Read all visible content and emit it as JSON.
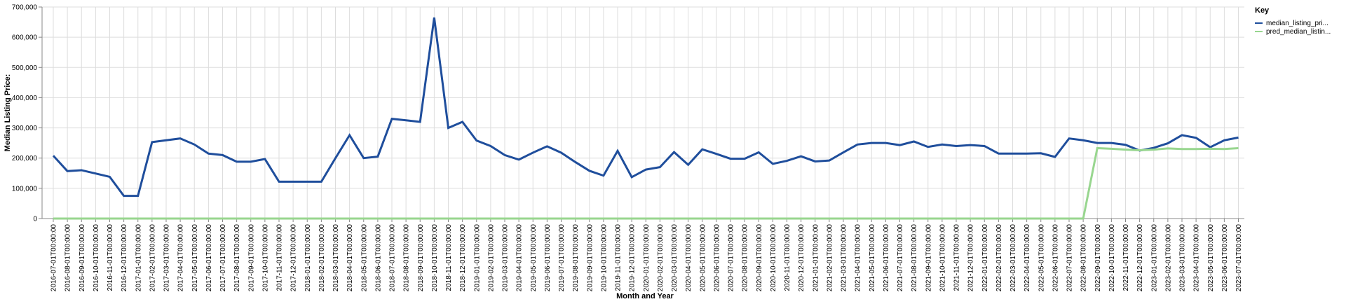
{
  "chart_data": {
    "type": "line",
    "xlabel": "Month and Year",
    "ylabel": "Median Listing Price:",
    "ylim": [
      0,
      700000
    ],
    "y_ticks": [
      0,
      100000,
      200000,
      300000,
      400000,
      500000,
      600000,
      700000
    ],
    "y_tick_labels": [
      "0",
      "100,000",
      "200,000",
      "300,000",
      "400,000",
      "500,000",
      "600,000",
      "700,000"
    ],
    "grid": true,
    "legend": {
      "title": "Key",
      "placement": "right"
    },
    "x": [
      "2016-07-01T00:00:00",
      "2016-08-01T00:00:00",
      "2016-09-01T00:00:00",
      "2016-10-01T00:00:00",
      "2016-11-01T00:00:00",
      "2016-12-01T00:00:00",
      "2017-01-01T00:00:00",
      "2017-02-01T00:00:00",
      "2017-03-01T00:00:00",
      "2017-04-01T00:00:00",
      "2017-05-01T00:00:00",
      "2017-06-01T00:00:00",
      "2017-07-01T00:00:00",
      "2017-08-01T00:00:00",
      "2017-09-01T00:00:00",
      "2017-10-01T00:00:00",
      "2017-11-01T00:00:00",
      "2017-12-01T00:00:00",
      "2018-01-01T00:00:00",
      "2018-02-01T00:00:00",
      "2018-03-01T00:00:00",
      "2018-04-01T00:00:00",
      "2018-05-01T00:00:00",
      "2018-06-01T00:00:00",
      "2018-07-01T00:00:00",
      "2018-08-01T00:00:00",
      "2018-09-01T00:00:00",
      "2018-10-01T00:00:00",
      "2018-11-01T00:00:00",
      "2018-12-01T00:00:00",
      "2019-01-01T00:00:00",
      "2019-02-01T00:00:00",
      "2019-03-01T00:00:00",
      "2019-04-01T00:00:00",
      "2019-05-01T00:00:00",
      "2019-06-01T00:00:00",
      "2019-07-01T00:00:00",
      "2019-08-01T00:00:00",
      "2019-09-01T00:00:00",
      "2019-10-01T00:00:00",
      "2019-11-01T00:00:00",
      "2019-12-01T00:00:00",
      "2020-01-01T00:00:00",
      "2020-02-01T00:00:00",
      "2020-03-01T00:00:00",
      "2020-04-01T00:00:00",
      "2020-05-01T00:00:00",
      "2020-06-01T00:00:00",
      "2020-07-01T00:00:00",
      "2020-08-01T00:00:00",
      "2020-09-01T00:00:00",
      "2020-10-01T00:00:00",
      "2020-11-01T00:00:00",
      "2020-12-01T00:00:00",
      "2021-01-01T00:00:00",
      "2021-02-01T00:00:00",
      "2021-03-01T00:00:00",
      "2021-04-01T00:00:00",
      "2021-05-01T00:00:00",
      "2021-06-01T00:00:00",
      "2021-07-01T00:00:00",
      "2021-08-01T00:00:00",
      "2021-09-01T00:00:00",
      "2021-10-01T00:00:00",
      "2021-11-01T00:00:00",
      "2021-12-01T00:00:00",
      "2022-01-01T00:00:00",
      "2022-02-01T00:00:00",
      "2022-03-01T00:00:00",
      "2022-04-01T00:00:00",
      "2022-05-01T00:00:00",
      "2022-06-01T00:00:00",
      "2022-07-01T00:00:00",
      "2022-08-01T00:00:00",
      "2022-09-01T00:00:00",
      "2022-10-01T00:00:00",
      "2022-11-01T00:00:00",
      "2022-12-01T00:00:00",
      "2023-01-01T00:00:00",
      "2023-02-01T00:00:00",
      "2023-03-01T00:00:00",
      "2023-04-01T00:00:00",
      "2023-05-01T00:00:00",
      "2023-06-01T00:00:00",
      "2023-07-01T00:00:00"
    ],
    "series": [
      {
        "name": "median_listing_pri...",
        "color": "#1f4e9c",
        "values": [
          208000,
          157000,
          160000,
          149000,
          138000,
          75000,
          75000,
          253000,
          259000,
          265000,
          245000,
          215000,
          210000,
          188000,
          188000,
          197000,
          122000,
          122000,
          122000,
          122000,
          200000,
          276000,
          200000,
          205000,
          330000,
          325000,
          320000,
          665000,
          300000,
          320000,
          258000,
          240000,
          210000,
          195000,
          218000,
          239000,
          218000,
          187000,
          158000,
          142000,
          224000,
          137000,
          162000,
          170000,
          220000,
          178000,
          229000,
          214000,
          198000,
          198000,
          219000,
          181000,
          191000,
          206000,
          189000,
          192000,
          219000,
          245000,
          250000,
          250000,
          243000,
          255000,
          237000,
          245000,
          240000,
          243000,
          240000,
          215000,
          215000,
          215000,
          216000,
          204000,
          265000,
          259000,
          250000,
          250000,
          244000,
          225000,
          234000,
          249000,
          276000,
          267000,
          236000,
          259000,
          268000
        ]
      },
      {
        "name": "pred_median_listin...",
        "color": "#98d68f",
        "values": [
          0,
          0,
          0,
          0,
          0,
          0,
          0,
          0,
          0,
          0,
          0,
          0,
          0,
          0,
          0,
          0,
          0,
          0,
          0,
          0,
          0,
          0,
          0,
          0,
          0,
          0,
          0,
          0,
          0,
          0,
          0,
          0,
          0,
          0,
          0,
          0,
          0,
          0,
          0,
          0,
          0,
          0,
          0,
          0,
          0,
          0,
          0,
          0,
          0,
          0,
          0,
          0,
          0,
          0,
          0,
          0,
          0,
          0,
          0,
          0,
          0,
          0,
          0,
          0,
          0,
          0,
          0,
          0,
          0,
          0,
          0,
          0,
          0,
          0,
          233000,
          231000,
          228000,
          226000,
          228000,
          232000,
          230000,
          230000,
          231000,
          230000,
          233000
        ]
      }
    ]
  }
}
